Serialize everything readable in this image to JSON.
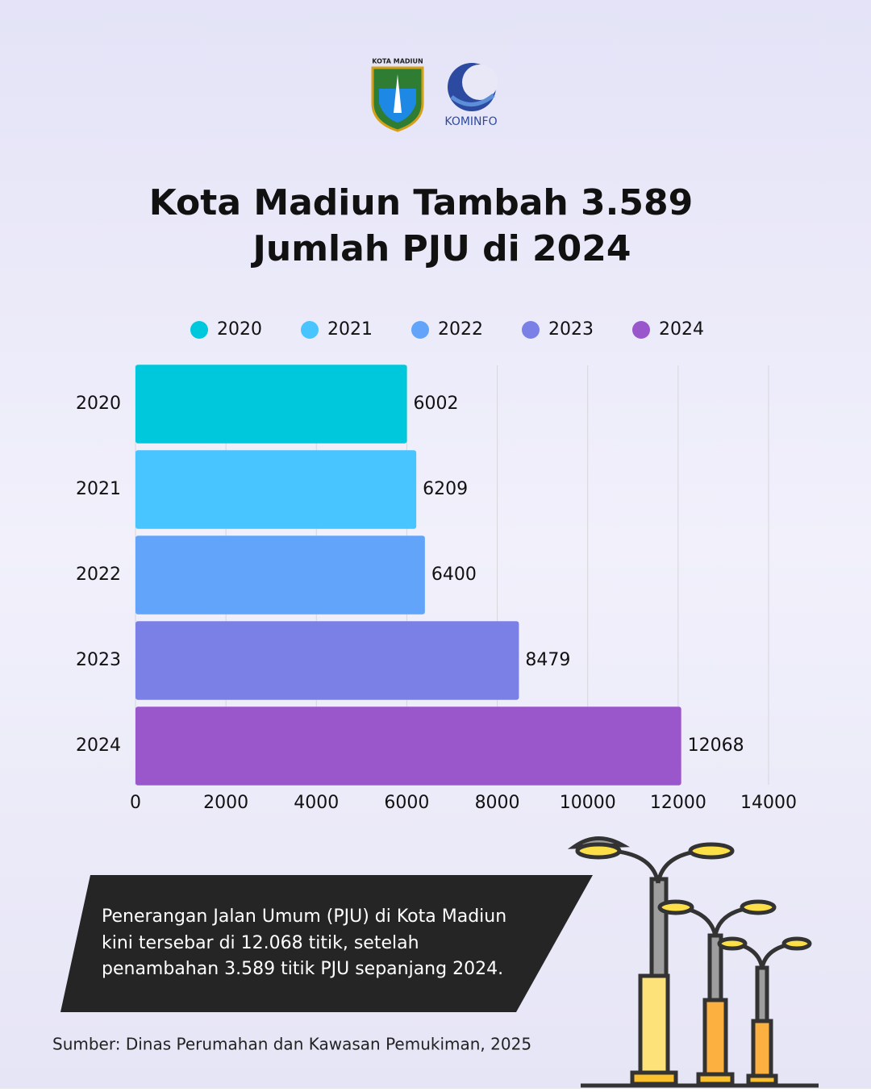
{
  "header": {
    "logo_left": "KOTA MADIUN",
    "logo_right": "KOMINFO"
  },
  "chart_data": {
    "type": "bar",
    "orientation": "horizontal",
    "title": [
      "Kota Madiun Tambah 3.589",
      "Jumlah PJU di 2024"
    ],
    "categories": [
      "2020",
      "2021",
      "2022",
      "2023",
      "2024"
    ],
    "values": [
      6002,
      6209,
      6400,
      8479,
      12068
    ],
    "colors": [
      "#00c8dc",
      "#48c4ff",
      "#62a4f9",
      "#7b80e6",
      "#9a57cc"
    ],
    "xlim": [
      0,
      14000
    ],
    "xticks": [
      0,
      2000,
      4000,
      6000,
      8000,
      10000,
      12000,
      14000
    ],
    "grid": true,
    "legend": "top"
  },
  "note": {
    "lines": [
      "Penerangan Jalan Umum (PJU) di Kota Madiun",
      "kini tersebar di 12.068 titik, setelah",
      "penambahan 3.589 titik PJU sepanjang 2024."
    ]
  },
  "source": "Sumber: Dinas Perumahan dan Kawasan Pemukiman, 2025"
}
